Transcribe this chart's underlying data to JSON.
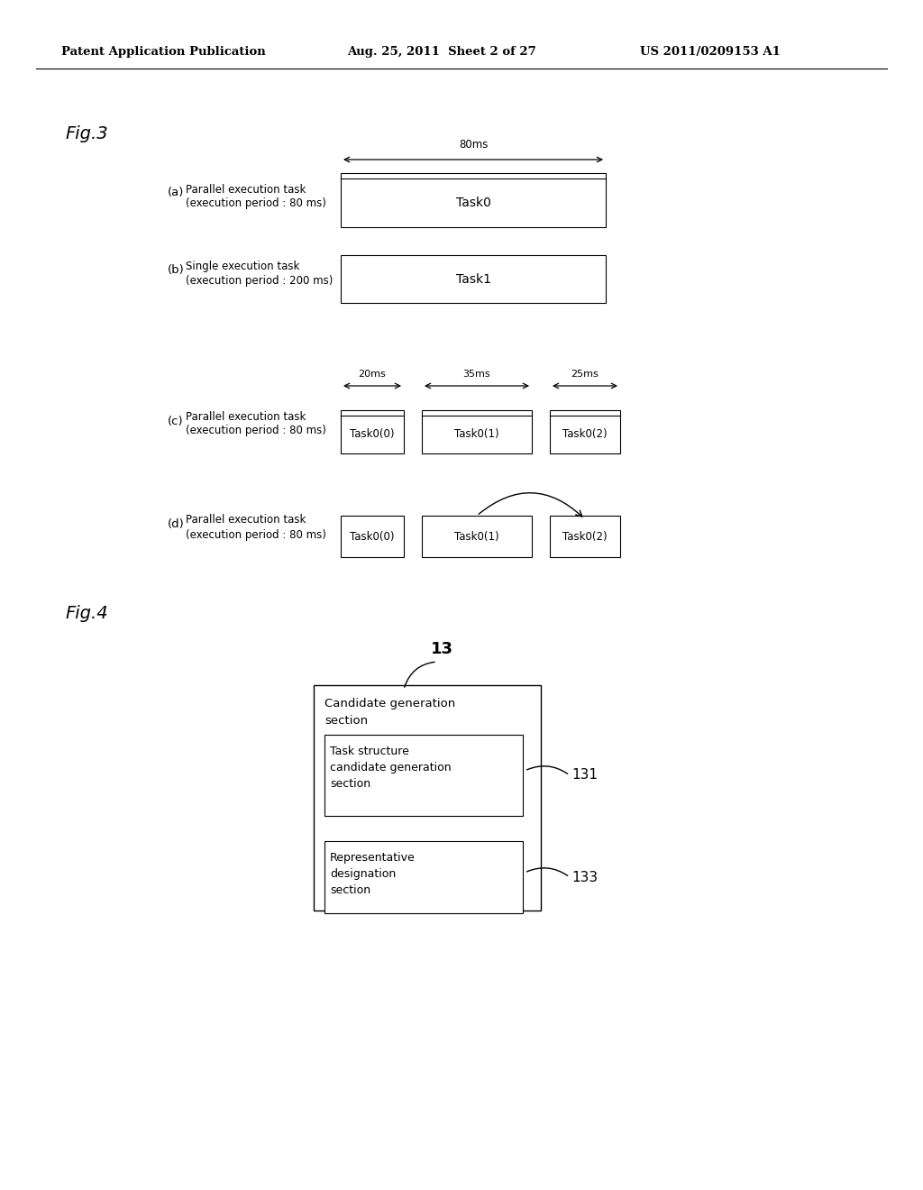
{
  "bg_color": "#ffffff",
  "header_left": "Patent Application Publication",
  "header_mid": "Aug. 25, 2011  Sheet 2 of 27",
  "header_right": "US 2011/0209153 A1",
  "fig3_label": "Fig.3",
  "fig4_label": "Fig.4",
  "section_a_label": "(a)",
  "section_a_line1": "Parallel execution task",
  "section_a_line2": "(execution period : 80 ms)",
  "section_b_label": "(b)",
  "section_b_line1": "Single execution task",
  "section_b_line2": "(execution period : 200 ms)",
  "section_c_label": "(c)",
  "section_c_line1": "Parallel execution task",
  "section_c_line2": "(execution period : 80 ms)",
  "section_d_label": "(d)",
  "section_d_line1": "Parallel execution task",
  "section_d_line2": "(execution period : 80 ms)",
  "arrow_80ms": "80ms",
  "arrow_20ms": "20ms",
  "arrow_35ms": "35ms",
  "arrow_25ms": "25ms",
  "task0": "Task0",
  "task1": "Task1",
  "task0_0": "Task0(0)",
  "task0_1": "Task0(1)",
  "task0_2": "Task0(2)",
  "label_13": "13",
  "label_131": "131",
  "label_133": "133",
  "fig4_outer_line1": "Candidate generation",
  "fig4_outer_line2": "section",
  "fig4_inner1_line1": "Task structure",
  "fig4_inner1_line2": "candidate generation",
  "fig4_inner1_line3": "section",
  "fig4_inner2_line1": "Representative",
  "fig4_inner2_line2": "designation",
  "fig4_inner2_line3": "section"
}
